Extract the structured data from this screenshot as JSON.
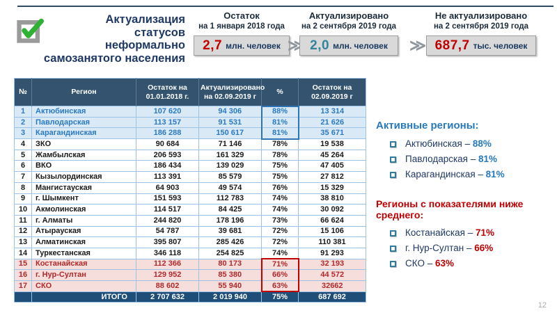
{
  "slide": {
    "page_number": "12",
    "title_lines": [
      "Актуализация",
      "статусов",
      "неформально",
      "самозанятого населения"
    ],
    "chevron_glyph": "≫",
    "summary_boxes": [
      {
        "label1": "Остаток",
        "label2": "на 1 января 2018 года",
        "value": "2,7",
        "unit": "млн. человек",
        "value_color": "#c00000"
      },
      {
        "label1": "Актуализировано",
        "label2": "на 2 сентября 2019 года",
        "value": "2,0",
        "unit": "млн. человек",
        "value_color": "#31849b"
      },
      {
        "label1": "Не актуализировано",
        "label2": "на 2 сентября 2019 года",
        "value": "687,7",
        "unit": "тыс. человек",
        "value_color": "#c00000"
      }
    ]
  },
  "table": {
    "headers": [
      "№",
      "Регион",
      "Остаток на 01.01.2018 г.",
      "Актуализировано на 02.09.2019 г",
      "%",
      "Остаток на 02.09.2019 г"
    ],
    "rows": [
      {
        "num": "1",
        "region": "Актюбинская",
        "balance_2018": "107 620",
        "actualized": "94 306",
        "percent": "88%",
        "balance_2019": "13 314",
        "state": "active"
      },
      {
        "num": "2",
        "region": "Павлодарская",
        "balance_2018": "113 157",
        "actualized": "91 531",
        "percent": "81%",
        "balance_2019": "21 626",
        "state": "active"
      },
      {
        "num": "3",
        "region": "Карагандинская",
        "balance_2018": "186 288",
        "actualized": "150 617",
        "percent": "81%",
        "balance_2019": "35 671",
        "state": "active"
      },
      {
        "num": "4",
        "region": "ЗКО",
        "balance_2018": "90 684",
        "actualized": "71 146",
        "percent": "78%",
        "balance_2019": "19 538",
        "state": "normal"
      },
      {
        "num": "5",
        "region": "Жамбылская",
        "balance_2018": "206 593",
        "actualized": "161 329",
        "percent": "78%",
        "balance_2019": "45 264",
        "state": "normal"
      },
      {
        "num": "6",
        "region": "ВКО",
        "balance_2018": "186 434",
        "actualized": "139 029",
        "percent": "75%",
        "balance_2019": "47 405",
        "state": "normal"
      },
      {
        "num": "7",
        "region": "Кызылординская",
        "balance_2018": "113 391",
        "actualized": "85 579",
        "percent": "75%",
        "balance_2019": "27 812",
        "state": "normal"
      },
      {
        "num": "8",
        "region": "Мангистауская",
        "balance_2018": "64 903",
        "actualized": "49 574",
        "percent": "76%",
        "balance_2019": "15 329",
        "state": "normal"
      },
      {
        "num": "9",
        "region": "г. Шымкент",
        "balance_2018": "151 593",
        "actualized": "112 783",
        "percent": "74%",
        "balance_2019": "38 810",
        "state": "normal"
      },
      {
        "num": "10",
        "region": "Акмолинская",
        "balance_2018": "114 517",
        "actualized": "84 425",
        "percent": "74%",
        "balance_2019": "30 092",
        "state": "normal"
      },
      {
        "num": "11",
        "region": "г. Алматы",
        "balance_2018": "244 820",
        "actualized": "178 196",
        "percent": "73%",
        "balance_2019": "66 624",
        "state": "normal"
      },
      {
        "num": "12",
        "region": "Атырауская",
        "balance_2018": "54 787",
        "actualized": "39 681",
        "percent": "72%",
        "balance_2019": "15 106",
        "state": "normal"
      },
      {
        "num": "13",
        "region": "Алматинская",
        "balance_2018": "395 807",
        "actualized": "285 426",
        "percent": "72%",
        "balance_2019": "110 381",
        "state": "normal"
      },
      {
        "num": "14",
        "region": "Туркестанская",
        "balance_2018": "346 118",
        "actualized": "254 825",
        "percent": "74%",
        "balance_2019": "91 293",
        "state": "normal"
      },
      {
        "num": "15",
        "region": "Костанайская",
        "balance_2018": "112 366",
        "actualized": "80 173",
        "percent": "71%",
        "balance_2019": "32 193",
        "state": "low"
      },
      {
        "num": "16",
        "region": "г. Нур-Султан",
        "balance_2018": "129 952",
        "actualized": "85 380",
        "percent": "66%",
        "balance_2019": "44 572",
        "state": "low"
      },
      {
        "num": "17",
        "region": "СКО",
        "balance_2018": "88 602",
        "actualized": "55 940",
        "percent": "63%",
        "balance_2019": "32662",
        "state": "low"
      }
    ],
    "total": {
      "label": "ИТОГО",
      "balance_2018": "2 707 632",
      "actualized": "2 019 940",
      "percent": "75%",
      "balance_2019": "687 692"
    }
  },
  "side_panel": {
    "dash": " – ",
    "active_regions": {
      "title": "Активные регионы:",
      "items": [
        {
          "name": "Актюбинская",
          "value": "88%"
        },
        {
          "name": "Павлодарская",
          "value": "81%"
        },
        {
          "name": "Карагандинская",
          "value": "81%"
        }
      ]
    },
    "low_regions": {
      "title": "Регионы с показателями ниже среднего:",
      "items": [
        {
          "name": "Костанайская",
          "value": "71%"
        },
        {
          "name": "г. Нур-Султан",
          "value": "66%"
        },
        {
          "name": "СКО",
          "value": "63%"
        }
      ]
    }
  },
  "colors": {
    "accent_navy": "#1f3864",
    "table_header_bg": "#33536f",
    "table_total_bg": "#1f4e79",
    "active_row_bg": "#d9e9f6",
    "active_text": "#2b79c2",
    "low_row_bg": "#f5dedc",
    "low_text": "#b02a2a",
    "grid_border": "#9cc3e5",
    "red_accent": "#c00000",
    "teal_accent": "#31849b",
    "blue_accent": "#2779bd",
    "value_box_bg": "#d9d9d9",
    "check_green": "#2eb135"
  }
}
